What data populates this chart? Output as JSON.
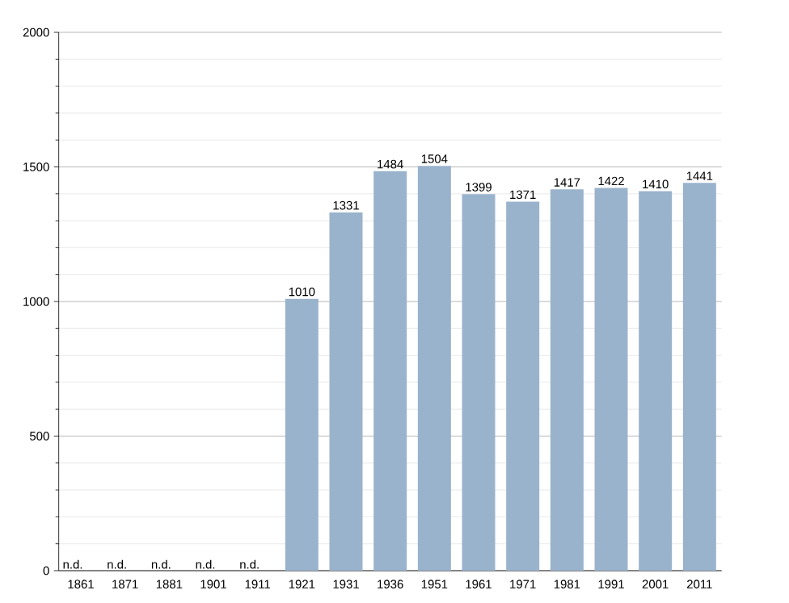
{
  "chart_data": {
    "type": "bar",
    "categories": [
      "1861",
      "1871",
      "1881",
      "1901",
      "1911",
      "1921",
      "1931",
      "1936",
      "1951",
      "1961",
      "1971",
      "1981",
      "1991",
      "2001",
      "2011"
    ],
    "values": [
      null,
      null,
      null,
      null,
      null,
      1010,
      1331,
      1484,
      1504,
      1399,
      1371,
      1417,
      1422,
      1410,
      1441
    ],
    "value_labels": [
      "n.d.",
      "n.d.",
      "n.d.",
      "n.d.",
      "n.d.",
      "1010",
      "1331",
      "1484",
      "1504",
      "1399",
      "1371",
      "1417",
      "1422",
      "1410",
      "1441"
    ],
    "color": "#9ab3cc",
    "ylim": [
      0,
      2000
    ],
    "yticks": [
      0,
      500,
      1000,
      1500,
      2000
    ],
    "grid": "y"
  }
}
